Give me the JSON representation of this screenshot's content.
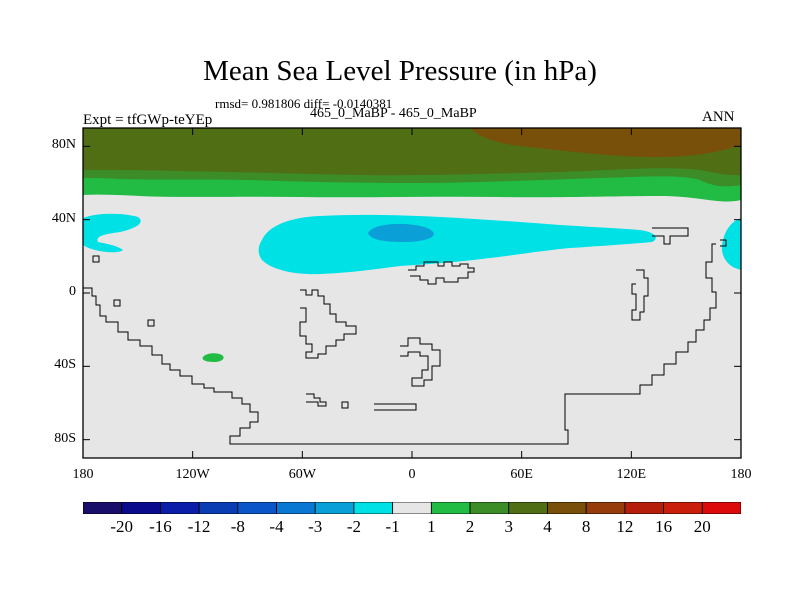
{
  "chart_data": {
    "type": "heatmap",
    "title": "Mean Sea Level Pressure (in hPa)",
    "subtitle": "rmsd= 0.981806  diff= -0.0140381",
    "left_label": "Expt = tfGWp-teYEp",
    "center_label": "465_0_MaBP - 465_0_MaBP",
    "right_label": "ANN",
    "x_ticks": [
      "180",
      "120W",
      "60W",
      "0",
      "60E",
      "120E",
      "180"
    ],
    "y_ticks": [
      "80N",
      "40N",
      "0",
      "40S",
      "80S"
    ],
    "xlim": [
      -180,
      180
    ],
    "ylim": [
      -90,
      90
    ],
    "colorbar": {
      "labels": [
        "-20",
        "-16",
        "-12",
        "-8",
        "-4",
        "-3",
        "-2",
        "-1",
        "1",
        "2",
        "3",
        "4",
        "8",
        "12",
        "16",
        "20"
      ],
      "colors": [
        "#1a0e6b",
        "#0a0a8c",
        "#0a1eaa",
        "#0a3cb4",
        "#0a55c8",
        "#0a78d2",
        "#0aa0d7",
        "#00e1e6",
        "#e6e6e6",
        "#22bb44",
        "#3c8c28",
        "#506e14",
        "#78500a",
        "#963c0a",
        "#b41e0a",
        "#c81e0a",
        "#dc0a0a"
      ]
    },
    "field_colors": {
      "background": "#e6e6e6",
      "neg_1_to_minus_2": "#00e1e6",
      "neg_2_to_minus_3": "#0aa0d7",
      "pos_1_to_2": "#22bb44",
      "pos_2_to_3": "#3c8c28",
      "pos_3_to_4": "#506e14",
      "pos_4_to_8": "#78500a"
    }
  }
}
